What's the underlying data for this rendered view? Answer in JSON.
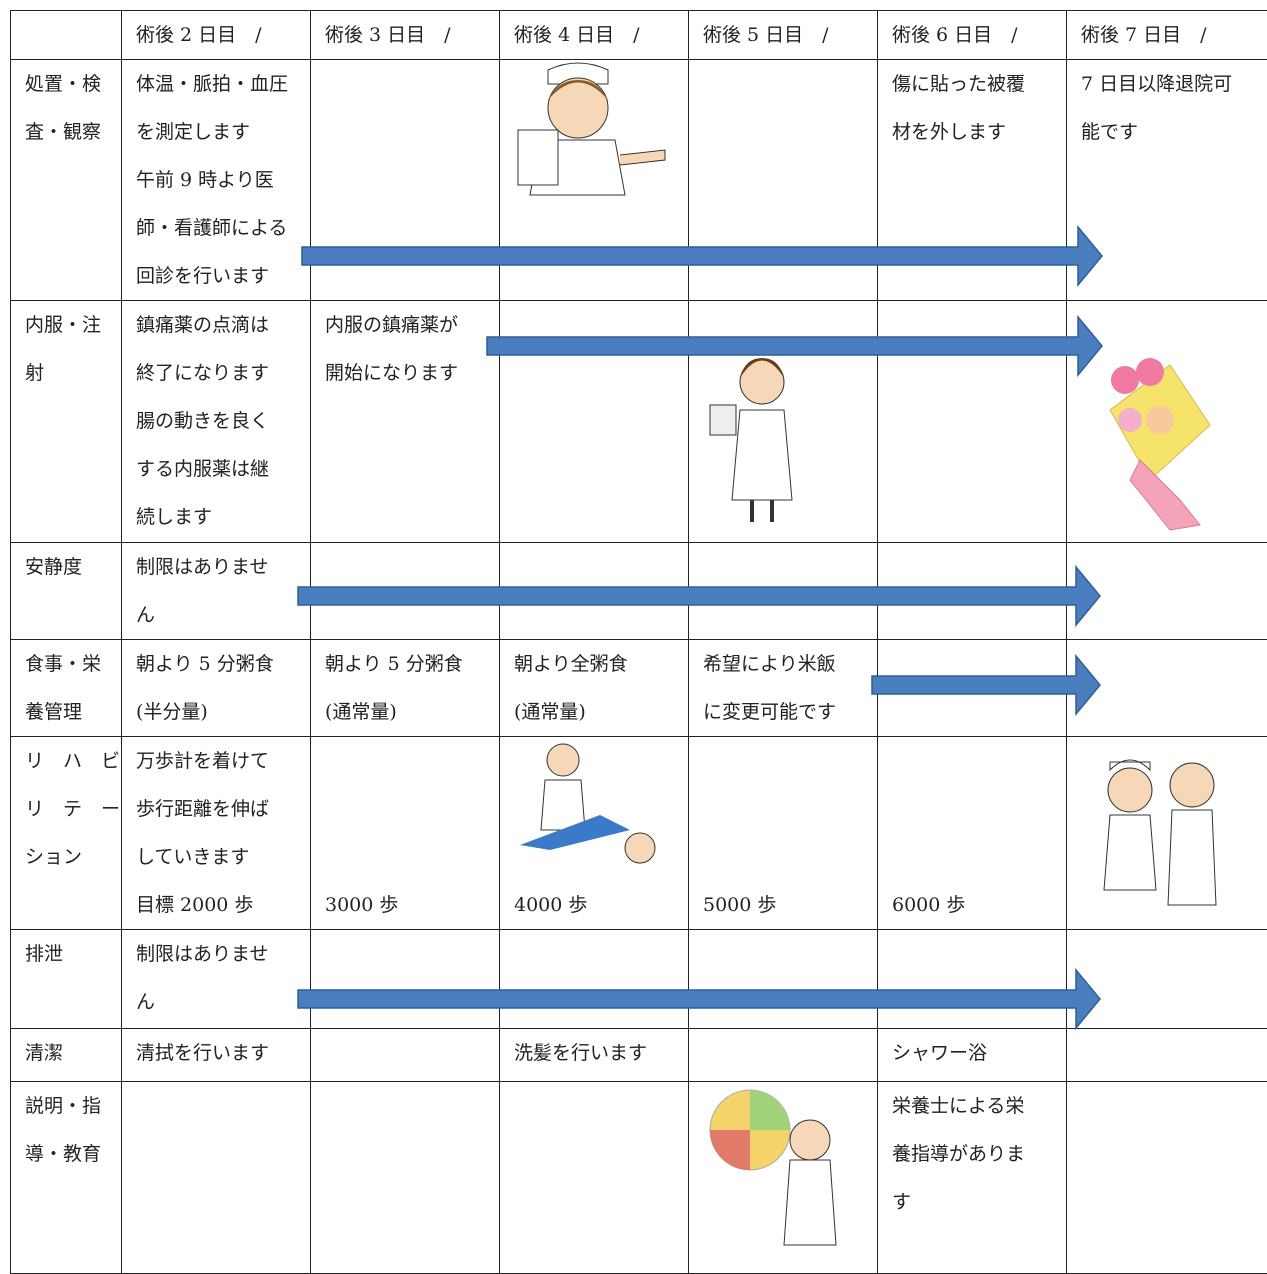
{
  "table": {
    "header": [
      "術後 2 日目　/",
      "術後 3 日目　/",
      "術後 4 日目　/",
      "術後 5 日目　/",
      "術後 6 日目　/",
      "術後 7 日目　/"
    ],
    "rows": [
      {
        "cells": [
          [
            "処置・検",
            "査・観察"
          ],
          [
            "体温・脈拍・血圧",
            "を測定します",
            "午前 9 時より医",
            "師・看護師による",
            "回診を行います"
          ],
          [],
          [],
          [],
          [
            "傷に貼った被覆",
            "材を外します"
          ],
          [
            "7 日目以降退院可",
            "能です"
          ]
        ]
      },
      {
        "cells": [
          [
            "内服・注",
            "射"
          ],
          [
            "鎮痛薬の点滴は",
            "終了になります",
            "腸の動きを良く",
            "する内服薬は継",
            "続します"
          ],
          [
            "内服の鎮痛薬が",
            "開始になります"
          ],
          [],
          [],
          [],
          []
        ]
      },
      {
        "cells": [
          [
            "安静度"
          ],
          [
            "制限はありませ",
            "ん"
          ],
          [],
          [],
          [],
          [],
          []
        ]
      },
      {
        "cells": [
          [
            "食事・栄",
            "養管理"
          ],
          [
            "朝より 5 分粥食",
            "(半分量)"
          ],
          [
            "朝より 5 分粥食",
            "(通常量)"
          ],
          [
            "朝より全粥食",
            "(通常量)"
          ],
          [
            "希望により米飯",
            "に変更可能です"
          ],
          [],
          []
        ]
      },
      {
        "cells": [
          [
            "リ　ハ　ビ",
            "リ　テ　ー",
            "ション"
          ],
          [
            "万歩計を着けて",
            "歩行距離を伸ば",
            "していきます",
            "目標 2000 歩"
          ],
          [
            "3000 歩"
          ],
          [
            "4000 歩"
          ],
          [
            "5000 歩"
          ],
          [
            "6000 歩"
          ],
          []
        ]
      },
      {
        "cells": [
          [
            "排泄"
          ],
          [
            "制限はありませ",
            "ん"
          ],
          [],
          [],
          [],
          [],
          []
        ]
      },
      {
        "cells": [
          [
            "清潔"
          ],
          [
            "清拭を行います"
          ],
          [],
          [
            "洗髪を行います"
          ],
          [],
          [
            "シャワー浴"
          ],
          []
        ]
      },
      {
        "cells": [
          [
            "説明・指",
            "導・教育"
          ],
          [],
          [],
          [],
          [],
          [
            "栄養士による栄",
            "養指導がありま",
            "す"
          ],
          []
        ]
      }
    ]
  }
}
